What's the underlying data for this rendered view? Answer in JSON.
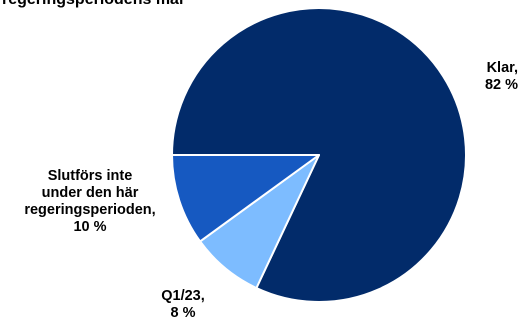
{
  "title": "regeringsperiodens mål",
  "chart_data": {
    "type": "pie",
    "title": "regeringsperiodens mål",
    "slices": [
      {
        "label": "Klar,",
        "value": 82,
        "value_text": "82 %",
        "color": "#022b6a"
      },
      {
        "label": "Q1/23,",
        "value": 8,
        "value_text": "8 %",
        "color": "#7dbcff"
      },
      {
        "label": "Slutförs inte under den här regeringsperioden,",
        "value": 10,
        "value_text": "10 %",
        "color": "#1659c1"
      }
    ],
    "legend": "none",
    "labels": "outside"
  },
  "labels": {
    "klar_name": "Klar,",
    "klar_value": "82 %",
    "slut_line1": "Slutförs inte",
    "slut_line2": "under den här",
    "slut_line3": "regeringsperioden,",
    "slut_value": "10 %",
    "q1_name": "Q1/23,",
    "q1_value": "8 %"
  }
}
